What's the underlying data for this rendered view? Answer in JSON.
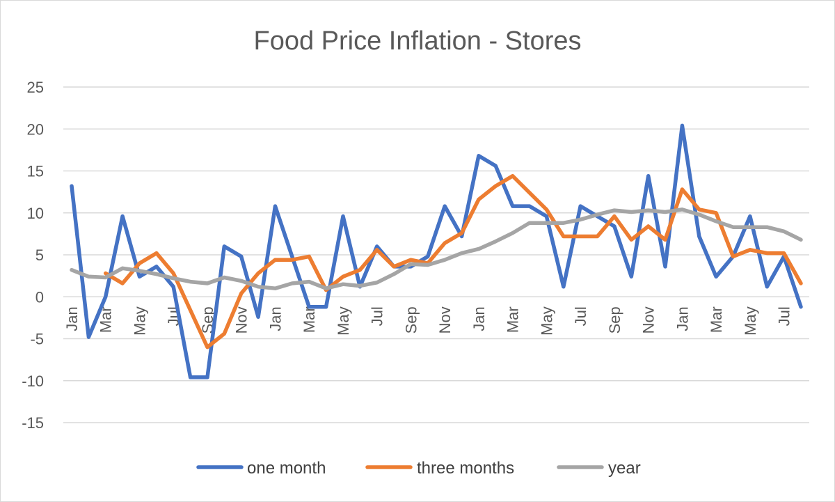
{
  "chart_data": {
    "type": "line",
    "title": "Food Price Inflation - Stores",
    "xlabel": "",
    "ylabel": "",
    "ylim": [
      -15,
      25
    ],
    "yticks": [
      25,
      20,
      15,
      10,
      5,
      0,
      -5,
      -10,
      -15
    ],
    "categories": [
      "Jan",
      "Feb",
      "Mar",
      "Apr",
      "May",
      "Jun",
      "Jul",
      "Aug",
      "Sep",
      "Oct",
      "Nov",
      "Dec",
      "Jan",
      "Feb",
      "Mar",
      "Apr",
      "May",
      "Jun",
      "Jul",
      "Aug",
      "Sep",
      "Oct",
      "Nov",
      "Dec",
      "Jan",
      "Feb",
      "Mar",
      "Apr",
      "May",
      "Jun",
      "Jul",
      "Aug",
      "Sep",
      "Oct",
      "Nov",
      "Dec",
      "Jan",
      "Feb",
      "Mar",
      "Apr",
      "May",
      "Jun",
      "Jul",
      "Aug"
    ],
    "tick_labels": [
      {
        "index": 0,
        "label": "Jan"
      },
      {
        "index": 2,
        "label": "Mar"
      },
      {
        "index": 4,
        "label": "May"
      },
      {
        "index": 6,
        "label": "Jul"
      },
      {
        "index": 8,
        "label": "Sep"
      },
      {
        "index": 10,
        "label": "Nov"
      },
      {
        "index": 12,
        "label": "Jan"
      },
      {
        "index": 14,
        "label": "Mar"
      },
      {
        "index": 16,
        "label": "May"
      },
      {
        "index": 18,
        "label": "Jul"
      },
      {
        "index": 20,
        "label": "Sep"
      },
      {
        "index": 22,
        "label": "Nov"
      },
      {
        "index": 24,
        "label": "Jan"
      },
      {
        "index": 26,
        "label": "Mar"
      },
      {
        "index": 28,
        "label": "May"
      },
      {
        "index": 30,
        "label": "Jul"
      },
      {
        "index": 32,
        "label": "Sep"
      },
      {
        "index": 34,
        "label": "Nov"
      },
      {
        "index": 36,
        "label": "Jan"
      },
      {
        "index": 38,
        "label": "Mar"
      },
      {
        "index": 40,
        "label": "May"
      },
      {
        "index": 42,
        "label": "Jul"
      }
    ],
    "series": [
      {
        "name": "one month",
        "color": "#4472c4",
        "values": [
          13.2,
          -4.8,
          0,
          9.6,
          2.4,
          3.6,
          1.2,
          -9.6,
          -9.6,
          6,
          4.8,
          -2.4,
          10.8,
          4.8,
          -1.2,
          -1.2,
          9.6,
          1.2,
          6,
          3.6,
          3.6,
          4.8,
          10.8,
          7.2,
          16.8,
          15.6,
          10.8,
          10.8,
          9.6,
          1.2,
          10.8,
          9.6,
          8.4,
          2.4,
          14.4,
          3.6,
          20.4,
          7.2,
          2.4,
          4.8,
          9.6,
          1.2,
          4.8,
          -1.2
        ]
      },
      {
        "name": "three months",
        "color": "#ed7d31",
        "values": [
          null,
          null,
          2.8,
          1.6,
          4,
          5.2,
          2.8,
          -1.6,
          -6,
          -4.4,
          0.4,
          2.8,
          4.4,
          4.4,
          4.8,
          0.8,
          2.4,
          3.2,
          5.6,
          3.6,
          4.4,
          4,
          6.4,
          7.6,
          11.6,
          13.2,
          14.4,
          12.4,
          10.4,
          7.2,
          7.2,
          7.2,
          9.6,
          6.8,
          8.4,
          6.8,
          12.8,
          10.4,
          10,
          4.8,
          5.6,
          5.2,
          5.2,
          1.6
        ]
      },
      {
        "name": "year",
        "color": "#a5a5a5",
        "values": [
          3.2,
          2.4,
          2.3,
          3.4,
          3.1,
          2.7,
          2.2,
          1.8,
          1.6,
          2.3,
          1.9,
          1.2,
          1,
          1.6,
          1.8,
          1,
          1.5,
          1.3,
          1.7,
          2.7,
          3.9,
          3.8,
          4.4,
          5.2,
          5.7,
          6.6,
          7.6,
          8.8,
          8.8,
          8.8,
          9.2,
          9.8,
          10.3,
          10.1,
          10.3,
          10.1,
          10.4,
          9.8,
          9,
          8.3,
          8.3,
          8.3,
          7.8,
          6.8
        ]
      }
    ],
    "grid": true,
    "legend": "bottom"
  }
}
